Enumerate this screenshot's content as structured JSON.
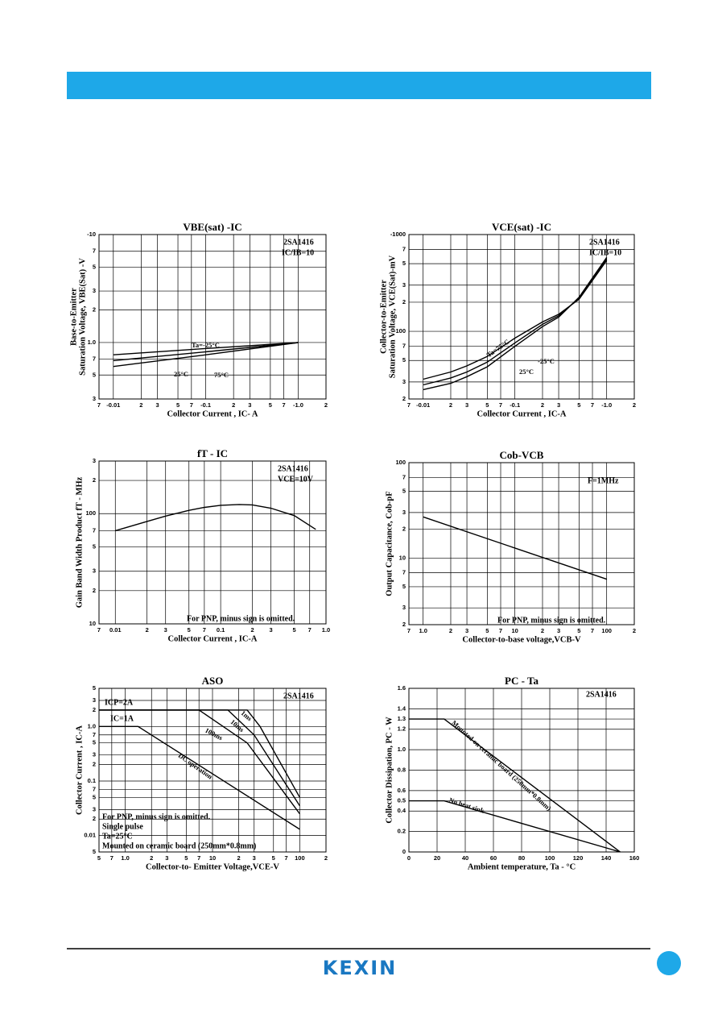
{
  "chart_data": [
    {
      "type": "line",
      "title": "VBE(sat) -IC",
      "x_label": "Collector Current , IC- A",
      "y_label": [
        "Base-to-Emitter",
        "Saturation Voltage, VBE(Sat) -V"
      ],
      "xscale": "log",
      "yscale": "log",
      "grid": true,
      "xlim": [
        -0.007,
        -2
      ],
      "ylim": [
        -0.3,
        -10
      ],
      "xticks": [
        {
          "value": -0.007,
          "label": "7"
        },
        -0.01,
        {
          "value": -0.02,
          "label": "2"
        },
        {
          "value": -0.03,
          "label": "3"
        },
        {
          "value": -0.05,
          "label": "5"
        },
        {
          "value": -0.07,
          "label": "7"
        },
        -0.1,
        {
          "value": -0.2,
          "label": "2"
        },
        {
          "value": -0.3,
          "label": "3"
        },
        {
          "value": -0.5,
          "label": "5"
        },
        {
          "value": -0.7,
          "label": "7"
        },
        {
          "value": -1,
          "label": "-1.0"
        },
        {
          "value": -2,
          "label": "2"
        }
      ],
      "yticks": [
        {
          "value": -0.3,
          "label": "3"
        },
        {
          "value": -0.5,
          "label": "5"
        },
        {
          "value": -0.7,
          "label": "7"
        },
        {
          "value": -1,
          "label": "1.0"
        },
        {
          "value": -2,
          "label": "2"
        },
        {
          "value": -3,
          "label": "3"
        },
        {
          "value": -5,
          "label": "5"
        },
        {
          "value": -7,
          "label": "7"
        },
        -10
      ],
      "annotations": [
        "2SA1416",
        "IC/IB=10"
      ],
      "series": [
        {
          "name": "Ta=-25°C",
          "color": "#000000",
          "x": [
            -0.01,
            -0.1,
            -1.0
          ],
          "values": [
            -0.77,
            -0.88,
            -1.0
          ]
        },
        {
          "name": "25°C",
          "color": "#000000",
          "x": [
            -0.01,
            -0.1,
            -1.0
          ],
          "values": [
            -0.68,
            -0.82,
            -1.0
          ]
        },
        {
          "name": "75°C",
          "color": "#000000",
          "x": [
            -0.01,
            -0.1,
            -1.0
          ],
          "values": [
            -0.6,
            -0.77,
            -1.0
          ]
        }
      ]
    },
    {
      "type": "line",
      "title": "VCE(sat) -IC",
      "x_label": "Collector Current , IC-A",
      "y_label": [
        "Collector-to-Emitter",
        "Saturation Voltage, VCE(Sat)-mV"
      ],
      "xscale": "log",
      "yscale": "log",
      "grid": true,
      "xlim": [
        -0.007,
        -2
      ],
      "ylim": [
        -20,
        -1000
      ],
      "xticks": [
        {
          "value": -0.007,
          "label": "7"
        },
        -0.01,
        {
          "value": -0.02,
          "label": "2"
        },
        {
          "value": -0.03,
          "label": "3"
        },
        {
          "value": -0.05,
          "label": "5"
        },
        {
          "value": -0.07,
          "label": "7"
        },
        -0.1,
        {
          "value": -0.2,
          "label": "2"
        },
        {
          "value": -0.3,
          "label": "3"
        },
        {
          "value": -0.5,
          "label": "5"
        },
        {
          "value": -0.7,
          "label": "7"
        },
        {
          "value": -1,
          "label": "-1.0"
        },
        {
          "value": -2,
          "label": "2"
        }
      ],
      "yticks": [
        {
          "value": -20,
          "label": "2"
        },
        {
          "value": -30,
          "label": "3"
        },
        {
          "value": -50,
          "label": "5"
        },
        {
          "value": -70,
          "label": "7"
        },
        -100,
        {
          "value": -200,
          "label": "2"
        },
        {
          "value": -300,
          "label": "3"
        },
        {
          "value": -500,
          "label": "5"
        },
        {
          "value": -700,
          "label": "7"
        },
        -1000
      ],
      "annotations": [
        "2SA1416",
        "IC/IB=10"
      ],
      "series": [
        {
          "name": "Ta=75°C",
          "color": "#000000",
          "x": [
            -0.01,
            -0.02,
            -0.03,
            -0.05,
            -0.1,
            -0.2,
            -0.3,
            -0.5,
            -1.0
          ],
          "values": [
            -32,
            -38,
            -44,
            -55,
            -85,
            -125,
            -150,
            -215,
            -540
          ]
        },
        {
          "name": "25°C",
          "color": "#000000",
          "x": [
            -0.01,
            -0.02,
            -0.03,
            -0.05,
            -0.1,
            -0.2,
            -0.3,
            -0.5,
            -1.0
          ],
          "values": [
            -28,
            -33,
            -38,
            -48,
            -76,
            -118,
            -145,
            -220,
            -560
          ]
        },
        {
          "name": "-25°C",
          "color": "#000000",
          "x": [
            -0.01,
            -0.02,
            -0.03,
            -0.05,
            -0.1,
            -0.2,
            -0.3,
            -0.5,
            -1.0
          ],
          "values": [
            -25,
            -29,
            -34,
            -43,
            -70,
            -112,
            -140,
            -225,
            -580
          ]
        }
      ]
    },
    {
      "type": "line",
      "title": "fT - IC",
      "x_label": "Collector Current , IC-A",
      "y_label": "Gain Band Width Product fT - MHz",
      "xscale": "log",
      "yscale": "log",
      "grid": true,
      "xlim": [
        0.007,
        1
      ],
      "ylim": [
        10,
        300
      ],
      "xticks": [
        {
          "value": 0.007,
          "label": "7"
        },
        0.01,
        {
          "value": 0.02,
          "label": "2"
        },
        {
          "value": 0.03,
          "label": "3"
        },
        {
          "value": 0.05,
          "label": "5"
        },
        {
          "value": 0.07,
          "label": "7"
        },
        0.1,
        {
          "value": 0.2,
          "label": "2"
        },
        {
          "value": 0.3,
          "label": "3"
        },
        {
          "value": 0.5,
          "label": "5"
        },
        {
          "value": 0.7,
          "label": "7"
        },
        {
          "value": 1,
          "label": "1.0"
        }
      ],
      "yticks": [
        10,
        {
          "value": 20,
          "label": "2"
        },
        {
          "value": 30,
          "label": "3"
        },
        {
          "value": 50,
          "label": "5"
        },
        {
          "value": 70,
          "label": "7"
        },
        100,
        {
          "value": 200,
          "label": "2"
        },
        {
          "value": 300,
          "label": "3"
        }
      ],
      "annotations": [
        "2SA1416",
        "VCE=10V",
        "For PNP, minus sign is omitted."
      ],
      "series": [
        {
          "color": "#000000",
          "x": [
            0.01,
            0.02,
            0.03,
            0.05,
            0.07,
            0.1,
            0.15,
            0.2,
            0.3,
            0.5,
            0.8
          ],
          "values": [
            70,
            85,
            95,
            107,
            114,
            119,
            121,
            120,
            112,
            96,
            72
          ]
        }
      ]
    },
    {
      "type": "line",
      "title": "Cob-VCB",
      "x_label": "Collector-to-base voltage,VCB-V",
      "y_label": "Output Capacitance, Cob-pF",
      "xscale": "log",
      "yscale": "log",
      "grid": true,
      "xlim": [
        0.7,
        200
      ],
      "ylim": [
        2,
        100
      ],
      "xticks": [
        {
          "value": 0.7,
          "label": "7"
        },
        {
          "value": 1,
          "label": "1.0"
        },
        2,
        3,
        5,
        7,
        10,
        {
          "value": 20,
          "label": "2"
        },
        {
          "value": 30,
          "label": "3"
        },
        {
          "value": 50,
          "label": "5"
        },
        {
          "value": 70,
          "label": "7"
        },
        100,
        {
          "value": 200,
          "label": "2"
        }
      ],
      "yticks": [
        2,
        3,
        5,
        7,
        10,
        {
          "value": 20,
          "label": "2"
        },
        {
          "value": 30,
          "label": "3"
        },
        {
          "value": 50,
          "label": "5"
        },
        {
          "value": 70,
          "label": "7"
        },
        100
      ],
      "annotations": [
        "F=1MHz",
        "For PNP, minus sign is omitted."
      ],
      "series": [
        {
          "color": "#000000",
          "x": [
            1,
            100
          ],
          "values": [
            27,
            6
          ]
        }
      ]
    },
    {
      "type": "line",
      "title": "ASO",
      "x_label": "Collector-to- Emitter Voltage,VCE-V",
      "y_label": "Collector Current , IC-A",
      "xscale": "log",
      "yscale": "log",
      "grid": true,
      "xlim": [
        0.5,
        200
      ],
      "ylim": [
        0.005,
        5
      ],
      "xticks": [
        {
          "value": 0.5,
          "label": "5"
        },
        {
          "value": 0.7,
          "label": "7"
        },
        {
          "value": 1,
          "label": "1.0"
        },
        2,
        3,
        5,
        7,
        10,
        {
          "value": 20,
          "label": "2"
        },
        {
          "value": 30,
          "label": "3"
        },
        {
          "value": 50,
          "label": "5"
        },
        {
          "value": 70,
          "label": "7"
        },
        100,
        {
          "value": 200,
          "label": "2"
        }
      ],
      "yticks": [
        {
          "value": 0.005,
          "label": "5"
        },
        0.01,
        {
          "value": 0.02,
          "label": "2"
        },
        {
          "value": 0.03,
          "label": "3"
        },
        {
          "value": 0.05,
          "label": "5"
        },
        {
          "value": 0.07,
          "label": "7"
        },
        0.1,
        {
          "value": 0.2,
          "label": "2"
        },
        {
          "value": 0.3,
          "label": "3"
        },
        {
          "value": 0.5,
          "label": "5"
        },
        {
          "value": 0.7,
          "label": "7"
        },
        {
          "value": 1,
          "label": "1.0"
        },
        2,
        3,
        5
      ],
      "annotations": [
        "2SA1416",
        "ICP=2A",
        "IC=1A",
        "For PNP, minus sign is omitted.",
        "Single pulse",
        "Ta=25°C",
        "Mounted on ceramic board (250mm*0.8mm)"
      ],
      "series": [
        {
          "name": "1ms",
          "color": "#000000",
          "x": [
            0.5,
            25,
            35,
            100
          ],
          "values": [
            2,
            2,
            1.0,
            0.05
          ]
        },
        {
          "name": "10ms",
          "color": "#000000",
          "x": [
            0.5,
            15,
            30,
            100
          ],
          "values": [
            2,
            2,
            0.7,
            0.035
          ]
        },
        {
          "name": "100ms",
          "color": "#000000",
          "x": [
            0.5,
            7,
            25,
            100
          ],
          "values": [
            2,
            2,
            0.5,
            0.025
          ]
        },
        {
          "name": "DC operation",
          "color": "#000000",
          "x": [
            0.5,
            1.4,
            100
          ],
          "values": [
            1,
            1,
            0.013
          ]
        }
      ]
    },
    {
      "type": "line",
      "title": "PC - Ta",
      "x_label": "Ambient temperature, Ta - °C",
      "y_label": "Collector Dissipation, PC - W",
      "xscale": "linear",
      "yscale": "linear",
      "grid": true,
      "xlim": [
        0,
        160
      ],
      "ylim": [
        0,
        1.6
      ],
      "xticks": [
        0,
        20,
        40,
        60,
        80,
        100,
        120,
        140,
        160
      ],
      "yticks": [
        0,
        0.2,
        0.4,
        0.5,
        0.6,
        0.8,
        {
          "value": 1,
          "label": "1.0"
        },
        1.2,
        1.3,
        1.4,
        1.6
      ],
      "annotations": [
        "2SA1416"
      ],
      "series": [
        {
          "name": "Mounted on ceramic board (250mm*0.8mm)",
          "color": "#000000",
          "x": [
            0,
            25,
            150
          ],
          "values": [
            1.3,
            1.3,
            0
          ]
        },
        {
          "name": "No heat sink",
          "color": "#000000",
          "x": [
            0,
            25,
            150
          ],
          "values": [
            0.5,
            0.5,
            0
          ]
        }
      ]
    }
  ],
  "footer": {
    "logo": "KEXIN"
  }
}
